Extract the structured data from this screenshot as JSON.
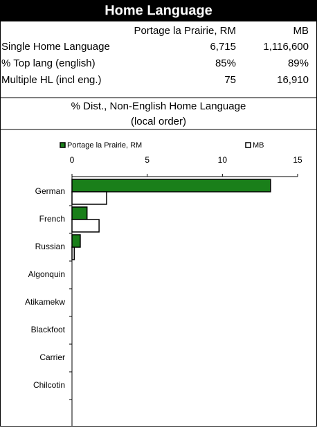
{
  "table": {
    "title": "Home Language",
    "columns": [
      "Portage la Prairie, RM",
      "MB"
    ],
    "rows": [
      [
        "Single Home Language",
        "6,715",
        "1,116,600"
      ],
      [
        "% Top lang (english)",
        "85%",
        "89%"
      ],
      [
        "Multiple HL (incl eng.)",
        "75",
        "16,910"
      ]
    ]
  },
  "chart_data": {
    "type": "bar",
    "orientation": "horizontal",
    "title": "% Dist., Non-English Home Language",
    "subtitle": "(local order)",
    "categories": [
      "German",
      "French",
      "Russian",
      "Algonquin",
      "Atikamekw",
      "Blackfoot",
      "Carrier",
      "Chilcotin"
    ],
    "series": [
      {
        "name": "Portage la Prairie, RM",
        "color": "#1a7f1a",
        "values": [
          13.2,
          1.0,
          0.55,
          0,
          0,
          0,
          0,
          0
        ]
      },
      {
        "name": "MB",
        "color": "#ffffff",
        "values": [
          2.3,
          1.8,
          0.15,
          0,
          0,
          0,
          0,
          0
        ]
      }
    ],
    "xlim": [
      0,
      15
    ],
    "xticks": [
      0,
      5,
      10,
      15
    ]
  }
}
